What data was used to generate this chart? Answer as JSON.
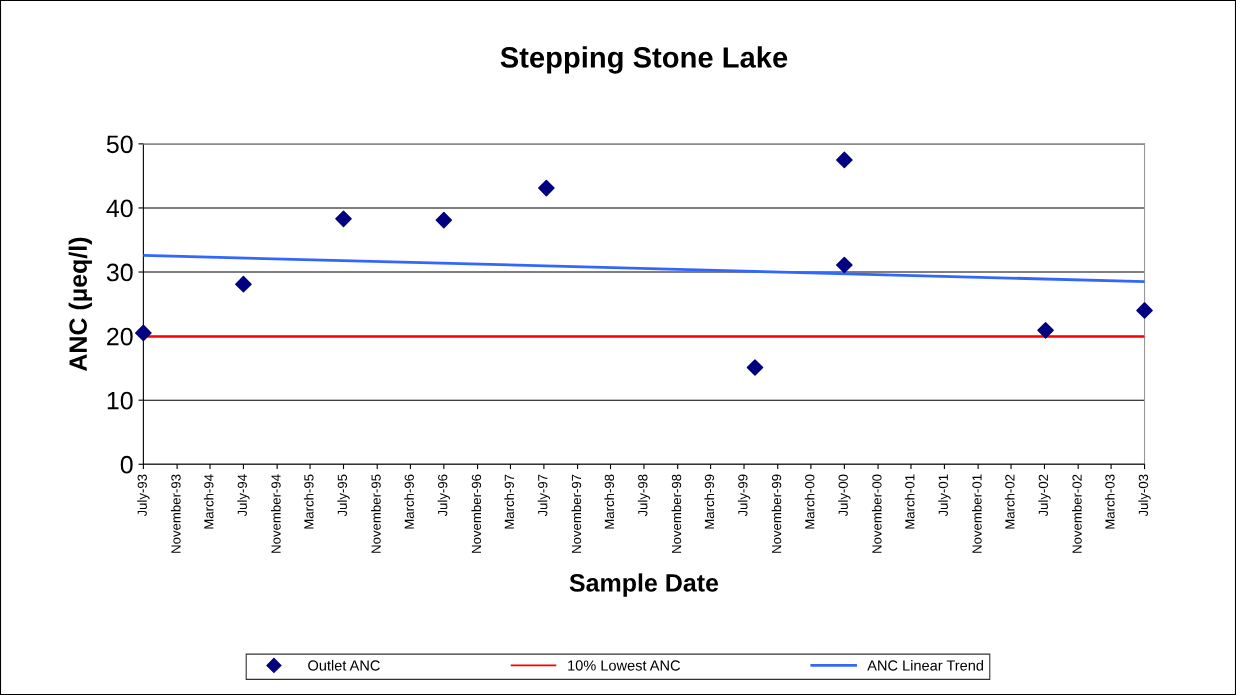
{
  "chart_data": {
    "type": "scatter",
    "title": "Stepping Stone Lake",
    "xlabel": "Sample Date",
    "ylabel": "ANC (µeq/l)",
    "series": [
      {
        "name": "Outlet ANC",
        "color": "#000080",
        "marker": "diamond",
        "x": [
          "1993-07-01",
          "1994-07-01",
          "1995-07-01",
          "1996-07-01",
          "1997-07-10",
          "1999-08-10",
          "2000-07-01",
          "2000-07-01",
          "2002-07-05",
          "2003-07-01"
        ],
        "values": [
          20.5,
          28.1,
          38.3,
          38.1,
          43.1,
          15.1,
          47.5,
          31.1,
          20.9,
          24.0
        ]
      },
      {
        "name": "10% Lowest ANC",
        "type": "line",
        "color": "#ff0000",
        "x": [
          "1993-07-01",
          "2003-07-01"
        ],
        "values": [
          19.9,
          19.9
        ]
      },
      {
        "name": "ANC Linear Trend",
        "type": "line",
        "color": "#3366ff",
        "x": [
          "1993-07-01",
          "2003-07-01"
        ],
        "values": [
          32.6,
          28.5
        ]
      }
    ],
    "xlim": [
      "1993-07-01",
      "2003-07-01"
    ],
    "xticks": [
      {
        "value": "1993-07-01",
        "label": "July-93"
      },
      {
        "value": "1993-11-01",
        "label": "November-93"
      },
      {
        "value": "1994-03-01",
        "label": "March-94"
      },
      {
        "value": "1994-07-01",
        "label": "July-94"
      },
      {
        "value": "1994-11-01",
        "label": "November-94"
      },
      {
        "value": "1995-03-01",
        "label": "March-95"
      },
      {
        "value": "1995-07-01",
        "label": "July-95"
      },
      {
        "value": "1995-11-01",
        "label": "November-95"
      },
      {
        "value": "1996-03-01",
        "label": "March-96"
      },
      {
        "value": "1996-07-01",
        "label": "July-96"
      },
      {
        "value": "1996-11-01",
        "label": "November-96"
      },
      {
        "value": "1997-03-01",
        "label": "March-97"
      },
      {
        "value": "1997-07-01",
        "label": "July-97"
      },
      {
        "value": "1997-11-01",
        "label": "November-97"
      },
      {
        "value": "1998-03-01",
        "label": "March-98"
      },
      {
        "value": "1998-07-01",
        "label": "July-98"
      },
      {
        "value": "1998-11-01",
        "label": "November-98"
      },
      {
        "value": "1999-03-01",
        "label": "March-99"
      },
      {
        "value": "1999-07-01",
        "label": "July-99"
      },
      {
        "value": "1999-11-01",
        "label": "November-99"
      },
      {
        "value": "2000-03-01",
        "label": "March-00"
      },
      {
        "value": "2000-07-01",
        "label": "July-00"
      },
      {
        "value": "2000-11-01",
        "label": "November-00"
      },
      {
        "value": "2001-03-01",
        "label": "March-01"
      },
      {
        "value": "2001-07-01",
        "label": "July-01"
      },
      {
        "value": "2001-11-01",
        "label": "November-01"
      },
      {
        "value": "2002-03-01",
        "label": "March-02"
      },
      {
        "value": "2002-07-01",
        "label": "July-02"
      },
      {
        "value": "2002-11-01",
        "label": "November-02"
      },
      {
        "value": "2003-03-01",
        "label": "March-03"
      },
      {
        "value": "2003-07-01",
        "label": "July-03"
      }
    ],
    "ylim": [
      0,
      50
    ],
    "yticks": [
      0,
      10,
      20,
      30,
      40,
      50
    ],
    "grid": "y",
    "legend": "bottom"
  }
}
